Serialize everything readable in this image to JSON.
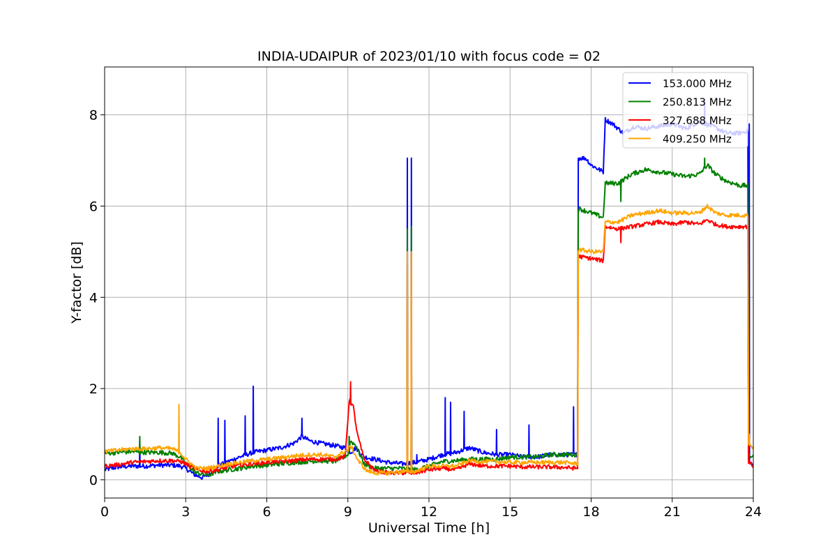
{
  "chart_data": {
    "type": "line",
    "title": "INDIA-UDAIPUR of 2023/01/10 with focus code = 02",
    "xlabel": "Universal Time [h]",
    "ylabel": "Y-factor [dB]",
    "xlim": [
      0,
      24
    ],
    "ylim": [
      -0.4,
      9.05
    ],
    "xticks": [
      0,
      3,
      6,
      9,
      12,
      15,
      18,
      21,
      24
    ],
    "xtick_labels": [
      "0",
      "3",
      "6",
      "9",
      "12",
      "15",
      "18",
      "21",
      "24"
    ],
    "yticks": [
      0,
      2,
      4,
      6,
      8
    ],
    "ytick_labels": [
      "0",
      "2",
      "4",
      "6",
      "8"
    ],
    "grid": true,
    "legend_position": "top-right",
    "series": [
      {
        "name": "153.000 MHz",
        "color": "#0000ff",
        "noise": 0.05,
        "points": [
          [
            0,
            0.22
          ],
          [
            0.5,
            0.28
          ],
          [
            1,
            0.3
          ],
          [
            1.5,
            0.3
          ],
          [
            2,
            0.32
          ],
          [
            2.5,
            0.32
          ],
          [
            2.8,
            0.3
          ],
          [
            3,
            0.25
          ],
          [
            3.3,
            0.12
          ],
          [
            3.6,
            0.05
          ],
          [
            3.9,
            0.12
          ],
          [
            4.2,
            0.3
          ],
          [
            4.5,
            0.38
          ],
          [
            5,
            0.5
          ],
          [
            5.5,
            0.6
          ],
          [
            6,
            0.65
          ],
          [
            6.5,
            0.7
          ],
          [
            7,
            0.8
          ],
          [
            7.3,
            0.95
          ],
          [
            7.6,
            0.85
          ],
          [
            8,
            0.8
          ],
          [
            8.5,
            0.75
          ],
          [
            8.9,
            0.7
          ],
          [
            9.1,
            0.6
          ],
          [
            9.3,
            0.7
          ],
          [
            9.6,
            0.5
          ],
          [
            10,
            0.45
          ],
          [
            10.5,
            0.38
          ],
          [
            11,
            0.35
          ],
          [
            11.5,
            0.38
          ],
          [
            12,
            0.45
          ],
          [
            12.5,
            0.55
          ],
          [
            13,
            0.6
          ],
          [
            13.5,
            0.7
          ],
          [
            14,
            0.6
          ],
          [
            14.5,
            0.55
          ],
          [
            15,
            0.55
          ],
          [
            15.5,
            0.5
          ],
          [
            16,
            0.5
          ],
          [
            16.5,
            0.55
          ],
          [
            17,
            0.55
          ],
          [
            17.5,
            0.55
          ],
          [
            17.52,
            7.05
          ],
          [
            17.8,
            7.05
          ],
          [
            18,
            6.9
          ],
          [
            18.3,
            6.8
          ],
          [
            18.45,
            6.75
          ],
          [
            18.52,
            7.9
          ],
          [
            18.8,
            7.8
          ],
          [
            19.2,
            7.6
          ],
          [
            19.6,
            7.75
          ],
          [
            20,
            7.7
          ],
          [
            20.5,
            7.75
          ],
          [
            21,
            7.8
          ],
          [
            21.5,
            7.7
          ],
          [
            22,
            7.85
          ],
          [
            22.5,
            7.75
          ],
          [
            23,
            7.6
          ],
          [
            23.5,
            7.6
          ],
          [
            23.8,
            7.65
          ],
          [
            23.82,
            0.4
          ],
          [
            24,
            0.3
          ]
        ],
        "spikes": [
          [
            1.3,
            0.85
          ],
          [
            4.2,
            1.35
          ],
          [
            4.45,
            1.3
          ],
          [
            5.2,
            1.4
          ],
          [
            5.5,
            2.05
          ],
          [
            7.3,
            1.35
          ],
          [
            11.2,
            7.05
          ],
          [
            11.35,
            7.05
          ],
          [
            11.55,
            0.55
          ],
          [
            12.6,
            1.8
          ],
          [
            12.8,
            1.7
          ],
          [
            13.3,
            1.5
          ],
          [
            14.5,
            1.1
          ],
          [
            15.7,
            1.2
          ],
          [
            17.35,
            1.6
          ],
          [
            22.2,
            8.3
          ],
          [
            23.85,
            7.8
          ]
        ]
      },
      {
        "name": "250.813 MHz",
        "color": "#008000",
        "noise": 0.05,
        "points": [
          [
            0,
            0.58
          ],
          [
            0.5,
            0.6
          ],
          [
            1,
            0.62
          ],
          [
            1.5,
            0.6
          ],
          [
            2,
            0.6
          ],
          [
            2.5,
            0.58
          ],
          [
            2.8,
            0.5
          ],
          [
            3,
            0.35
          ],
          [
            3.4,
            0.15
          ],
          [
            3.8,
            0.1
          ],
          [
            4.2,
            0.18
          ],
          [
            4.6,
            0.22
          ],
          [
            5,
            0.25
          ],
          [
            5.5,
            0.3
          ],
          [
            6,
            0.32
          ],
          [
            6.5,
            0.35
          ],
          [
            7,
            0.38
          ],
          [
            7.5,
            0.4
          ],
          [
            8,
            0.42
          ],
          [
            8.5,
            0.4
          ],
          [
            9,
            0.55
          ],
          [
            9.1,
            0.85
          ],
          [
            9.3,
            0.75
          ],
          [
            9.6,
            0.35
          ],
          [
            10,
            0.25
          ],
          [
            10.5,
            0.25
          ],
          [
            11,
            0.25
          ],
          [
            11.5,
            0.22
          ],
          [
            12,
            0.3
          ],
          [
            12.5,
            0.4
          ],
          [
            13,
            0.42
          ],
          [
            13.5,
            0.45
          ],
          [
            14,
            0.45
          ],
          [
            14.5,
            0.45
          ],
          [
            15,
            0.5
          ],
          [
            15.5,
            0.5
          ],
          [
            16,
            0.5
          ],
          [
            16.5,
            0.55
          ],
          [
            17,
            0.55
          ],
          [
            17.5,
            0.55
          ],
          [
            17.52,
            5.95
          ],
          [
            18,
            5.85
          ],
          [
            18.45,
            5.75
          ],
          [
            18.52,
            6.5
          ],
          [
            19,
            6.5
          ],
          [
            19.5,
            6.7
          ],
          [
            20,
            6.8
          ],
          [
            20.5,
            6.75
          ],
          [
            21,
            6.7
          ],
          [
            21.5,
            6.65
          ],
          [
            22,
            6.7
          ],
          [
            22.3,
            6.9
          ],
          [
            22.6,
            6.7
          ],
          [
            23,
            6.55
          ],
          [
            23.5,
            6.45
          ],
          [
            23.8,
            6.45
          ],
          [
            23.82,
            0.55
          ],
          [
            24,
            0.5
          ]
        ],
        "spikes": [
          [
            1.3,
            0.95
          ],
          [
            9.05,
            0.95
          ],
          [
            11.2,
            5.5
          ],
          [
            11.35,
            5.55
          ],
          [
            19.1,
            6.1
          ],
          [
            22.2,
            7.05
          ]
        ]
      },
      {
        "name": "327.688 MHz",
        "color": "#ff0000",
        "noise": 0.045,
        "points": [
          [
            0,
            0.3
          ],
          [
            0.5,
            0.33
          ],
          [
            1,
            0.38
          ],
          [
            1.5,
            0.4
          ],
          [
            2,
            0.42
          ],
          [
            2.5,
            0.42
          ],
          [
            2.8,
            0.4
          ],
          [
            3,
            0.35
          ],
          [
            3.4,
            0.22
          ],
          [
            3.8,
            0.18
          ],
          [
            4.2,
            0.22
          ],
          [
            4.6,
            0.28
          ],
          [
            5,
            0.32
          ],
          [
            5.5,
            0.35
          ],
          [
            6,
            0.38
          ],
          [
            6.5,
            0.4
          ],
          [
            7,
            0.42
          ],
          [
            7.5,
            0.45
          ],
          [
            8,
            0.45
          ],
          [
            8.5,
            0.45
          ],
          [
            8.9,
            0.5
          ],
          [
            9.05,
            1.75
          ],
          [
            9.2,
            1.6
          ],
          [
            9.35,
            1.0
          ],
          [
            9.6,
            0.45
          ],
          [
            10,
            0.2
          ],
          [
            10.5,
            0.15
          ],
          [
            11,
            0.15
          ],
          [
            11.5,
            0.15
          ],
          [
            12,
            0.22
          ],
          [
            12.5,
            0.25
          ],
          [
            13,
            0.22
          ],
          [
            13.5,
            0.35
          ],
          [
            14,
            0.3
          ],
          [
            14.5,
            0.3
          ],
          [
            15,
            0.3
          ],
          [
            15.5,
            0.28
          ],
          [
            16,
            0.28
          ],
          [
            16.5,
            0.28
          ],
          [
            17,
            0.27
          ],
          [
            17.5,
            0.25
          ],
          [
            17.52,
            4.9
          ],
          [
            18,
            4.85
          ],
          [
            18.45,
            4.8
          ],
          [
            18.52,
            5.55
          ],
          [
            19,
            5.5
          ],
          [
            19.5,
            5.55
          ],
          [
            20,
            5.6
          ],
          [
            20.5,
            5.65
          ],
          [
            21,
            5.6
          ],
          [
            21.5,
            5.65
          ],
          [
            22,
            5.6
          ],
          [
            22.3,
            5.7
          ],
          [
            22.6,
            5.6
          ],
          [
            23,
            5.55
          ],
          [
            23.5,
            5.55
          ],
          [
            23.8,
            5.55
          ],
          [
            23.82,
            0.4
          ],
          [
            24,
            0.3
          ]
        ],
        "spikes": [
          [
            9.1,
            2.15
          ],
          [
            11.2,
            4.95
          ],
          [
            11.35,
            4.95
          ],
          [
            19.1,
            5.2
          ]
        ]
      },
      {
        "name": "409.250 MHz",
        "color": "#ffa500",
        "noise": 0.045,
        "points": [
          [
            0,
            0.62
          ],
          [
            0.5,
            0.65
          ],
          [
            1,
            0.68
          ],
          [
            1.5,
            0.68
          ],
          [
            2,
            0.7
          ],
          [
            2.5,
            0.68
          ],
          [
            2.8,
            0.6
          ],
          [
            3,
            0.45
          ],
          [
            3.4,
            0.25
          ],
          [
            3.8,
            0.25
          ],
          [
            4.2,
            0.3
          ],
          [
            4.6,
            0.35
          ],
          [
            5,
            0.38
          ],
          [
            5.5,
            0.42
          ],
          [
            6,
            0.45
          ],
          [
            6.5,
            0.48
          ],
          [
            7,
            0.52
          ],
          [
            7.5,
            0.55
          ],
          [
            8,
            0.55
          ],
          [
            8.5,
            0.5
          ],
          [
            9,
            0.65
          ],
          [
            9.1,
            0.75
          ],
          [
            9.4,
            0.4
          ],
          [
            9.7,
            0.2
          ],
          [
            10,
            0.15
          ],
          [
            10.5,
            0.15
          ],
          [
            11,
            0.18
          ],
          [
            11.5,
            0.18
          ],
          [
            12,
            0.3
          ],
          [
            12.5,
            0.3
          ],
          [
            13,
            0.3
          ],
          [
            13.5,
            0.42
          ],
          [
            14,
            0.4
          ],
          [
            14.5,
            0.4
          ],
          [
            15,
            0.38
          ],
          [
            15.5,
            0.38
          ],
          [
            16,
            0.38
          ],
          [
            16.5,
            0.38
          ],
          [
            17,
            0.38
          ],
          [
            17.5,
            0.35
          ],
          [
            17.52,
            5.05
          ],
          [
            18,
            5.0
          ],
          [
            18.45,
            5.0
          ],
          [
            18.52,
            5.65
          ],
          [
            19,
            5.65
          ],
          [
            19.5,
            5.8
          ],
          [
            20,
            5.85
          ],
          [
            20.5,
            5.9
          ],
          [
            21,
            5.85
          ],
          [
            21.5,
            5.85
          ],
          [
            22,
            5.85
          ],
          [
            22.3,
            6.0
          ],
          [
            22.6,
            5.85
          ],
          [
            23,
            5.8
          ],
          [
            23.5,
            5.8
          ],
          [
            23.8,
            5.8
          ],
          [
            23.82,
            0.8
          ],
          [
            24,
            0.7
          ]
        ],
        "spikes": [
          [
            2.75,
            1.65
          ],
          [
            11.2,
            5.0
          ],
          [
            11.35,
            5.0
          ],
          [
            23.85,
            1.0
          ]
        ]
      }
    ]
  }
}
